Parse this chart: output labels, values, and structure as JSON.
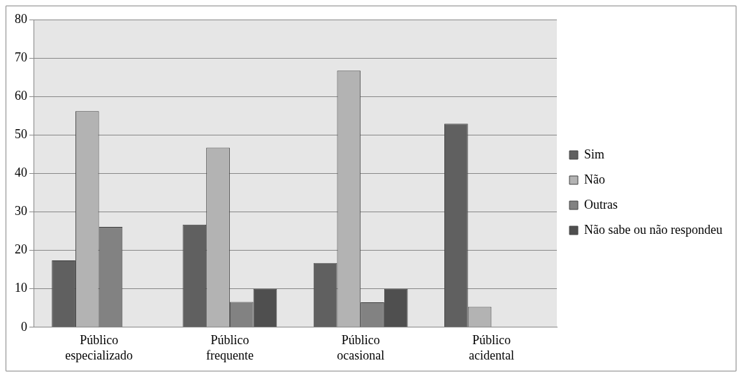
{
  "chart_data": {
    "type": "bar",
    "categories": [
      "Público especializado",
      "Público frequente",
      "Público ocasional",
      "Público acidental"
    ],
    "series": [
      {
        "name": "Sim",
        "color": "#606060",
        "values": [
          17.4,
          26.7,
          16.7,
          52.9
        ]
      },
      {
        "name": "Não",
        "color": "#b3b3b3",
        "values": [
          56.2,
          46.7,
          66.7,
          5.3
        ]
      },
      {
        "name": "Outras",
        "color": "#828282",
        "values": [
          26.1,
          6.6,
          6.5,
          0
        ]
      },
      {
        "name": "Não sabe ou não respondeu",
        "color": "#4f4f4f",
        "values": [
          0,
          10,
          10,
          0
        ]
      }
    ],
    "ylim": [
      0,
      80
    ],
    "yticks": [
      0,
      10,
      20,
      30,
      40,
      50,
      60,
      70,
      80
    ],
    "grid": "y",
    "legend": "right"
  }
}
